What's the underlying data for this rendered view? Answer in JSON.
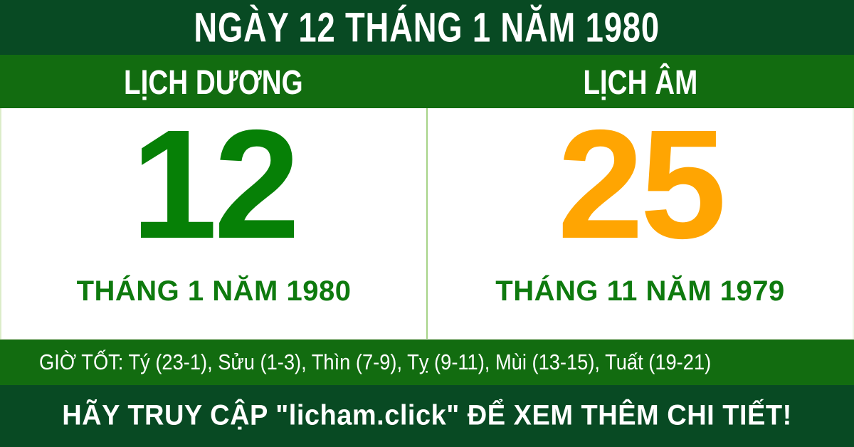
{
  "header": {
    "title": "NGÀY 12 THÁNG 1 NĂM 1980"
  },
  "solar": {
    "header": "LỊCH DƯƠNG",
    "day": "12",
    "month_year": "THÁNG 1 NĂM 1980"
  },
  "lunar": {
    "header": "LỊCH ÂM",
    "day": "25",
    "month_year": "THÁNG 11 NĂM 1979"
  },
  "good_hours": {
    "text": "GIỜ TỐT: Tý (23-1), Sửu (1-3), Thìn (7-9), Tỵ (9-11), Mùi (13-15), Tuất (19-21)",
    "label": "GIỜ TỐT:",
    "items": [
      "Tý (23-1)",
      "Sửu (1-3)",
      "Thìn (7-9)",
      "Tỵ (9-11)",
      "Mùi (13-15)",
      "Tuất (19-21)"
    ]
  },
  "footer": {
    "cta": "HÃY TRUY CẬP \"licham.click\" ĐỂ XEM THÊM CHI TIẾT!",
    "site": "licham.click"
  },
  "colors": {
    "dark_green": "#084a23",
    "band_green": "#126c10",
    "solar_number_green": "#068006",
    "label_green": "#0e7a0e",
    "lunar_number_orange": "#ffa502",
    "divider_light_green": "#a6d388",
    "text_white": "#ffffff"
  }
}
